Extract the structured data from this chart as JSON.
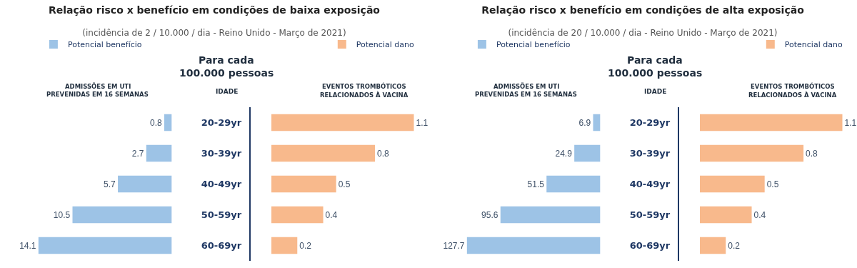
{
  "chart_data": [
    {
      "type": "bar",
      "orientation": "horizontal",
      "title": "Relação risco x benefício em condições de baixa exposição",
      "subtitle": "(incidência de 2 / 10.000 / dia - Reino Unido - Março de 2021)",
      "categories": [
        "20-29yr",
        "30-39yr",
        "40-49yr",
        "50-59yr",
        "60-69yr"
      ],
      "series": [
        {
          "name": "Potencial benefício",
          "color": "#9dc3e6",
          "values": [
            0.8,
            2.7,
            5.7,
            10.5,
            14.1
          ]
        }
      ],
      "data_labels": true,
      "legend": "top left",
      "grid": false,
      "tick_labels": "y",
      "annotations": [
        "Para cada",
        "100.000 pessoas",
        "IDADE",
        "ADMISSÕES EM UTI",
        "PREVENIDAS EM 16 SEMANAS"
      ]
    },
    {
      "type": "bar",
      "orientation": "horizontal",
      "categories": [
        null,
        null,
        null,
        null,
        null
      ],
      "series": [
        {
          "name": "Potencial dano",
          "color": "#f8b98c",
          "values": [
            1.1,
            0.8,
            0.5,
            0.4,
            0.2
          ]
        }
      ],
      "data_labels": true,
      "legend": "top right",
      "grid": false,
      "tick_labels": false,
      "annotations": [
        "EVENTOS TROMBÓTICOS",
        "RELACIONADOS À VACINA"
      ]
    },
    {
      "type": "bar",
      "orientation": "horizontal",
      "title": "Relação risco x benefício em condições de alta exposição",
      "subtitle": "(incidência de 20 / 10.000 / dia - Reino Unido - Março de 2021)",
      "categories": [
        "20-29yr",
        "30-39yr",
        "40-49yr",
        "50-59yr",
        "60-69yr"
      ],
      "series": [
        {
          "name": "Potencial benefício",
          "color": "#9dc3e6",
          "values": [
            6.9,
            24.9,
            51.5,
            95.6,
            127.7
          ]
        }
      ],
      "data_labels": true,
      "legend": "top left",
      "grid": false,
      "tick_labels": "y",
      "annotations": [
        "Para cada",
        "100.000 pessoas",
        "IDADE",
        "ADMISSÕES EM UTI",
        "PREVENIDAS EM 16 SEMANAS"
      ]
    },
    {
      "type": "bar",
      "orientation": "horizontal",
      "categories": [
        null,
        null,
        null,
        null,
        null
      ],
      "series": [
        {
          "name": "Potencial dano",
          "color": "#f8b98c",
          "values": [
            1.1,
            0.8,
            0.5,
            0.4,
            0.2
          ]
        }
      ],
      "data_labels": true,
      "legend": "top right",
      "grid": false,
      "tick_labels": false,
      "annotations": [
        "EVENTOS TROMBÓTICOS",
        "RELACIONADOS À VACINA"
      ]
    }
  ]
}
